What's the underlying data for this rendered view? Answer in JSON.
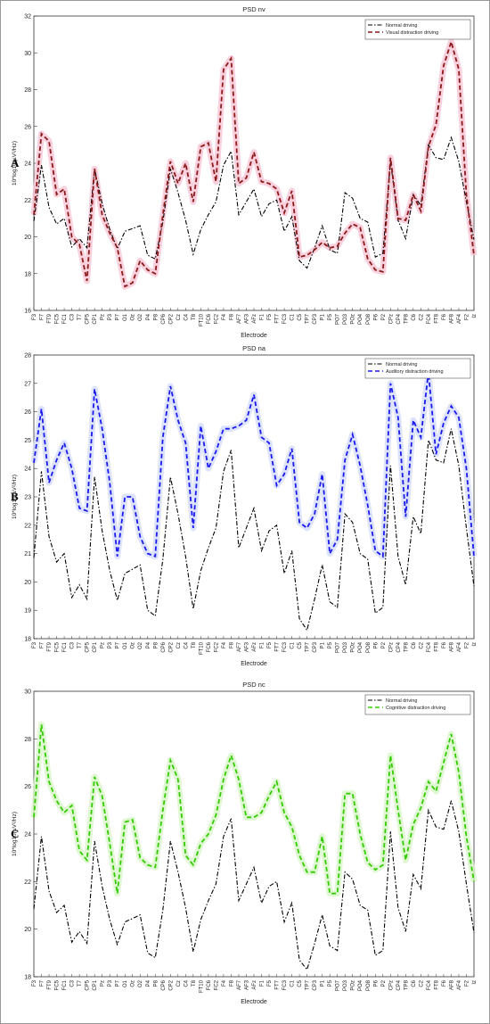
{
  "chart_data": [
    {
      "type": "line",
      "panel_label": "A",
      "title": "PSD nv",
      "xlabel": "Electrode",
      "ylabel": "10*log10(µV²/Hz)",
      "categories": [
        "F3",
        "F7",
        "FT9",
        "FC5",
        "FC1",
        "C3",
        "T7",
        "CP5",
        "CP1",
        "Pz",
        "P3",
        "P7",
        "O1",
        "Oz",
        "O2",
        "P4",
        "P8",
        "CP6",
        "CP2",
        "Cz",
        "C4",
        "T8",
        "FT10",
        "FC6",
        "FC2",
        "F4",
        "F8",
        "AF7",
        "AF3",
        "AFz",
        "F1",
        "F5",
        "FT7",
        "FC3",
        "C1",
        "C5",
        "TP7",
        "CP3",
        "P1",
        "P5",
        "PO7",
        "PO3",
        "POz",
        "PO4",
        "PO8",
        "P6",
        "P2",
        "CPz",
        "CP4",
        "TP8",
        "C6",
        "C2",
        "FC4",
        "FT8",
        "F6",
        "AF8",
        "AF4",
        "F2",
        "Iz"
      ],
      "series": [
        {
          "name": "Normal driving",
          "color": "#000000",
          "linestyle": "-.",
          "values": [
            20.85,
            23.9,
            21.6,
            20.7,
            21.0,
            19.45,
            19.9,
            19.4,
            23.7,
            21.8,
            20.4,
            19.35,
            20.3,
            20.45,
            20.6,
            19.0,
            18.8,
            20.8,
            23.7,
            22.4,
            20.9,
            19.05,
            20.4,
            21.2,
            21.9,
            23.9,
            24.65,
            21.2,
            21.9,
            22.6,
            21.1,
            21.8,
            22.0,
            20.3,
            21.1,
            18.7,
            18.3,
            19.4,
            20.6,
            19.3,
            19.1,
            22.4,
            22.1,
            21.0,
            20.8,
            18.9,
            19.1,
            24.1,
            20.9,
            19.9,
            22.3,
            21.7,
            25.0,
            24.3,
            24.2,
            25.4,
            24.1,
            21.9,
            19.85
          ]
        },
        {
          "name": "Visual distraction driving",
          "color": "#8b1a1a",
          "shade": "#f7c6d6",
          "linestyle": "--",
          "values": [
            21.2,
            25.6,
            25.2,
            22.3,
            22.6,
            20.0,
            19.6,
            17.6,
            23.7,
            21.2,
            20.2,
            19.4,
            17.3,
            17.5,
            18.7,
            18.2,
            18.0,
            21.2,
            24.1,
            22.9,
            24.0,
            21.9,
            24.9,
            25.1,
            23.0,
            29.1,
            29.7,
            22.9,
            23.2,
            24.6,
            23.0,
            22.9,
            22.6,
            21.3,
            22.5,
            18.9,
            19.0,
            19.3,
            19.7,
            19.4,
            19.5,
            20.2,
            20.7,
            20.5,
            18.8,
            18.2,
            18.1,
            24.3,
            21.0,
            20.9,
            22.3,
            21.4,
            24.9,
            26.1,
            29.3,
            30.6,
            29.1,
            22.3,
            19.0
          ]
        }
      ],
      "ylim": [
        16,
        32
      ],
      "yticks": [
        16,
        18,
        20,
        22,
        24,
        26,
        28,
        30,
        32
      ],
      "legend": "upper right"
    },
    {
      "type": "line",
      "panel_label": "B",
      "title": "PSD na",
      "xlabel": "Electrode",
      "ylabel": "10*log10(µV²/Hz)",
      "categories": [
        "F3",
        "F7",
        "FT9",
        "FC5",
        "FC1",
        "C3",
        "T7",
        "CP5",
        "CP1",
        "Pz",
        "P3",
        "P7",
        "O1",
        "Oz",
        "O2",
        "P4",
        "P8",
        "CP6",
        "CP2",
        "Cz",
        "C4",
        "T8",
        "FT10",
        "FC6",
        "FC2",
        "F4",
        "F8",
        "AF7",
        "AF3",
        "AFz",
        "F1",
        "F5",
        "FT7",
        "FC3",
        "C1",
        "C5",
        "TP7",
        "CP3",
        "P1",
        "P5",
        "PO7",
        "PO3",
        "POz",
        "PO4",
        "PO8",
        "P6",
        "P2",
        "CPz",
        "CP4",
        "TP8",
        "C6",
        "C2",
        "FC4",
        "FT8",
        "F6",
        "AF8",
        "AF4",
        "F2",
        "Iz"
      ],
      "series": [
        {
          "name": "Normal driving",
          "color": "#000000",
          "linestyle": "-.",
          "values": [
            20.85,
            23.9,
            21.6,
            20.7,
            21.0,
            19.45,
            19.9,
            19.4,
            23.7,
            21.8,
            20.4,
            19.35,
            20.3,
            20.45,
            20.6,
            19.0,
            18.8,
            20.8,
            23.7,
            22.4,
            20.9,
            19.05,
            20.4,
            21.2,
            21.9,
            23.9,
            24.65,
            21.2,
            21.9,
            22.6,
            21.1,
            21.8,
            22.0,
            20.3,
            21.1,
            18.7,
            18.3,
            19.4,
            20.6,
            19.3,
            19.1,
            22.4,
            22.1,
            21.0,
            20.8,
            18.9,
            19.1,
            24.1,
            20.9,
            19.9,
            22.3,
            21.7,
            25.0,
            24.3,
            24.2,
            25.4,
            24.1,
            21.9,
            19.85
          ]
        },
        {
          "name": "Auditory distraction driving",
          "color": "#1a1aee",
          "shade": "#d6dcfb",
          "linestyle": "--",
          "values": [
            24.2,
            26.1,
            23.5,
            24.3,
            24.9,
            24.0,
            22.6,
            22.5,
            26.8,
            25.4,
            23.5,
            20.9,
            23.0,
            23.0,
            21.6,
            21.0,
            20.9,
            25.1,
            26.9,
            25.7,
            24.9,
            21.9,
            25.5,
            24.0,
            24.6,
            25.4,
            25.4,
            25.5,
            25.7,
            26.6,
            25.1,
            24.9,
            23.4,
            23.8,
            24.7,
            22.1,
            21.9,
            22.4,
            23.8,
            21.0,
            21.5,
            24.3,
            25.2,
            24.1,
            22.7,
            21.1,
            20.9,
            27.0,
            25.8,
            22.3,
            25.7,
            25.1,
            27.4,
            24.5,
            25.6,
            26.2,
            25.8,
            24.0,
            20.9
          ]
        }
      ],
      "ylim": [
        18,
        28
      ],
      "yticks": [
        18,
        19,
        20,
        21,
        22,
        23,
        24,
        25,
        26,
        27,
        28
      ],
      "legend": "upper right"
    },
    {
      "type": "line",
      "panel_label": "C",
      "title": "PSD nc",
      "xlabel": "Electrode",
      "ylabel": "10*log10(µV²/Hz)",
      "categories": [
        "F3",
        "F7",
        "FT9",
        "FC5",
        "FC1",
        "C3",
        "T7",
        "CP5",
        "CP1",
        "Pz",
        "P3",
        "P7",
        "O1",
        "Oz",
        "O2",
        "P4",
        "P8",
        "CP6",
        "CP2",
        "Cz",
        "C4",
        "T8",
        "FT10",
        "FC6",
        "FC2",
        "F4",
        "F8",
        "AF7",
        "AF3",
        "AFz",
        "F1",
        "F5",
        "FT7",
        "FC3",
        "C1",
        "C5",
        "TP7",
        "CP3",
        "P1",
        "P5",
        "PO7",
        "PO3",
        "POz",
        "PO4",
        "PO8",
        "P6",
        "P2",
        "CPz",
        "CP4",
        "TP8",
        "C6",
        "C2",
        "FC4",
        "FT8",
        "F6",
        "AF8",
        "AF4",
        "F2",
        "Iz"
      ],
      "series": [
        {
          "name": "Normal driving",
          "color": "#000000",
          "linestyle": "-.",
          "values": [
            20.85,
            23.9,
            21.6,
            20.7,
            21.0,
            19.45,
            19.9,
            19.4,
            23.7,
            21.8,
            20.4,
            19.35,
            20.3,
            20.45,
            20.6,
            19.0,
            18.8,
            20.8,
            23.7,
            22.4,
            20.9,
            19.05,
            20.4,
            21.2,
            21.9,
            23.9,
            24.65,
            21.2,
            21.9,
            22.6,
            21.1,
            21.8,
            22.0,
            20.3,
            21.1,
            18.7,
            18.3,
            19.4,
            20.6,
            19.3,
            19.1,
            22.4,
            22.1,
            21.0,
            20.8,
            18.9,
            19.1,
            24.1,
            20.9,
            19.9,
            22.3,
            21.7,
            25.0,
            24.3,
            24.2,
            25.4,
            24.1,
            21.9,
            19.85
          ]
        },
        {
          "name": "Cognitive distraction driving",
          "color": "#33cc00",
          "shade": "#d8f5c8",
          "linestyle": "--",
          "values": [
            24.7,
            28.6,
            26.2,
            25.4,
            24.9,
            25.2,
            23.3,
            22.9,
            26.4,
            25.6,
            23.6,
            21.5,
            24.5,
            24.6,
            23.0,
            22.7,
            22.6,
            25.0,
            27.1,
            26.3,
            23.1,
            22.7,
            23.6,
            24.0,
            24.8,
            26.3,
            27.3,
            26.3,
            24.7,
            24.7,
            24.9,
            25.6,
            26.2,
            24.9,
            24.3,
            23.1,
            22.4,
            22.4,
            23.9,
            21.5,
            21.5,
            25.7,
            25.7,
            24.0,
            22.8,
            22.5,
            22.7,
            27.3,
            25.0,
            22.9,
            24.4,
            25.1,
            26.2,
            25.8,
            27.0,
            28.2,
            26.6,
            23.9,
            22.0
          ]
        }
      ],
      "ylim": [
        18,
        30
      ],
      "yticks": [
        18,
        20,
        22,
        24,
        26,
        28,
        30
      ],
      "legend": "upper right"
    }
  ]
}
